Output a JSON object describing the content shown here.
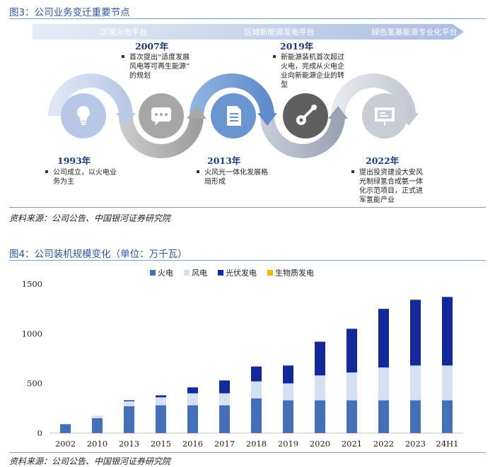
{
  "fig3": {
    "title": "图3：公司业务变迁重要节点",
    "platforms": [
      "区域火电平台",
      "区域新能源发电平台",
      "绿色氢基能源专业化平台"
    ],
    "milestones": [
      {
        "year": "1993年",
        "text": [
          "公司成立，以火电业",
          "务为主"
        ]
      },
      {
        "year": "2007年",
        "text": [
          "首次提出“适度发展",
          "风电等可再生能源”",
          "的规划"
        ]
      },
      {
        "year": "2013年",
        "text": [
          "火风光一体化发展格",
          "局形成"
        ]
      },
      {
        "year": "2019年",
        "text": [
          "新能源装机首次超过",
          "火电，完成从火电企",
          "业向新能源企业的转",
          "型"
        ]
      },
      {
        "year": "2022年",
        "text": [
          "提出投资建设大安风",
          "光制绿氢合成氨一体",
          "化示范项目，正式进",
          "军氢能产业"
        ]
      }
    ],
    "icons": [
      "lightbulb-icon",
      "chat-bubble-icon",
      "document-icon",
      "tools-gear-icon",
      "presentation-board-icon"
    ],
    "source": "资料来源：公司公告、中国银河证券研究院"
  },
  "fig4": {
    "title": "图4：公司装机规模变化（单位：万千瓦）",
    "source": "资料来源：公司公告、中国银河证券研究院"
  },
  "chart_data": {
    "type": "bar",
    "stacked": true,
    "categories": [
      "2002",
      "2010",
      "2013",
      "2015",
      "2016",
      "2017",
      "2018",
      "2019",
      "2020",
      "2021",
      "2022",
      "2023",
      "24H1"
    ],
    "series": [
      {
        "name": "火电",
        "color": "#4470b8",
        "values": [
          90,
          150,
          270,
          280,
          280,
          280,
          350,
          330,
          330,
          330,
          330,
          330,
          330
        ]
      },
      {
        "name": "风电",
        "color": "#d5e0f2",
        "values": [
          0,
          25,
          50,
          80,
          120,
          120,
          170,
          170,
          250,
          280,
          330,
          350,
          350
        ]
      },
      {
        "name": "光伏发电",
        "color": "#13299a",
        "values": [
          0,
          0,
          10,
          20,
          60,
          130,
          150,
          180,
          340,
          440,
          590,
          660,
          690
        ]
      },
      {
        "name": "生物质发电",
        "color": "#f2b705",
        "values": [
          0,
          0,
          0,
          0,
          0,
          0,
          0,
          0,
          0,
          0,
          0,
          5,
          0
        ]
      }
    ],
    "ylim": [
      0,
      1500
    ],
    "yticks": [
      0,
      500,
      1000,
      1500
    ],
    "legend": "top-center",
    "grid": false
  }
}
